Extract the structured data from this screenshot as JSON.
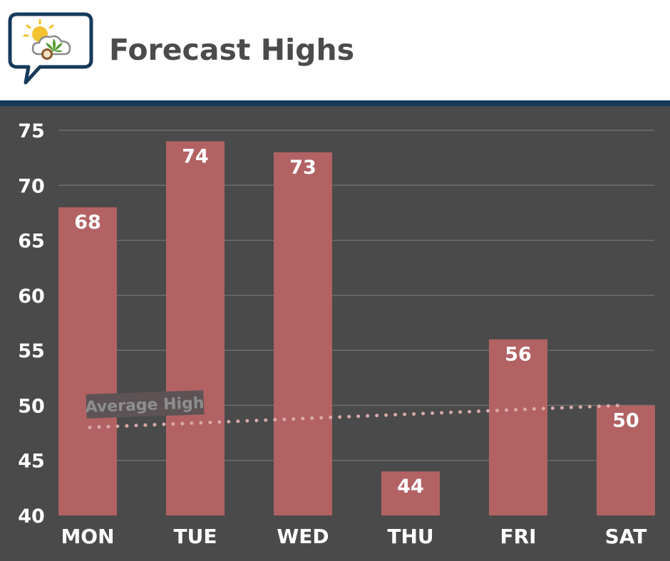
{
  "colors": {
    "background": "#4a4a4a",
    "bar": "#b36264",
    "grid": "#6e6e6e",
    "text": "#ffffff",
    "accent_rule": "#163a5a",
    "average_line": "#d7aaa9"
  },
  "header": {
    "title": "Forecast Highs",
    "logo_icon": "weather-cannabis-chat-bubble-icon"
  },
  "chart_data": {
    "type": "bar",
    "title": "Forecast Highs",
    "xlabel": "",
    "ylabel": "",
    "categories": [
      "MON",
      "TUE",
      "WED",
      "THU",
      "FRI",
      "SAT"
    ],
    "values": [
      68,
      74,
      73,
      44,
      56,
      50
    ],
    "data_labels": [
      "68",
      "74",
      "73",
      "44",
      "56",
      "50"
    ],
    "ylim": [
      40,
      75
    ],
    "yticks": [
      40,
      45,
      50,
      55,
      60,
      65,
      70,
      75
    ],
    "grid": true,
    "reference_line": {
      "label": "Average High",
      "style": "dotted",
      "start_value": 48,
      "end_value": 50
    }
  }
}
